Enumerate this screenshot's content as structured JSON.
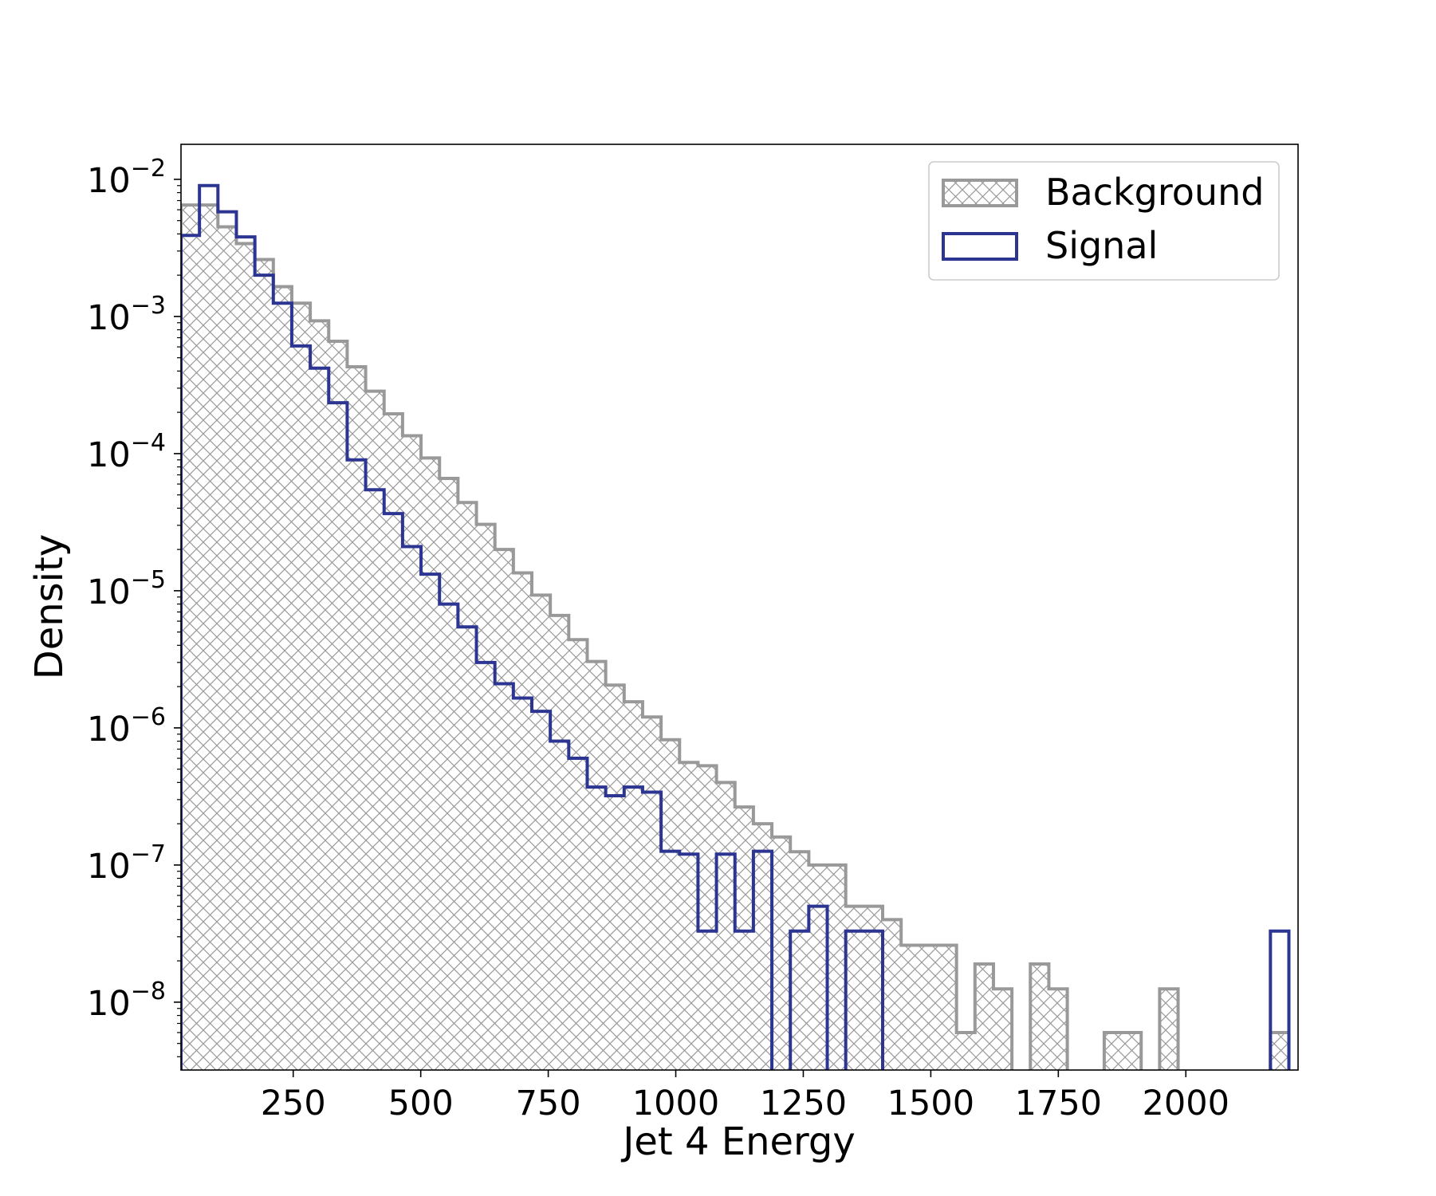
{
  "chart_data": {
    "type": "histogram",
    "xlabel": "Jet 4 Energy",
    "ylabel": "Density",
    "yscale": "log",
    "xlim": [
      30,
      2220
    ],
    "ylim": [
      3.2e-09,
      0.018
    ],
    "x_ticks": [
      250,
      500,
      750,
      1000,
      1250,
      1500,
      1750,
      2000
    ],
    "y_ticks": [
      {
        "value": 0.01,
        "base": "10",
        "exp": "−2"
      },
      {
        "value": 0.001,
        "base": "10",
        "exp": "−3"
      },
      {
        "value": 0.0001,
        "base": "10",
        "exp": "−4"
      },
      {
        "value": 1e-05,
        "base": "10",
        "exp": "−5"
      },
      {
        "value": 1e-06,
        "base": "10",
        "exp": "−6"
      },
      {
        "value": 1e-07,
        "base": "10",
        "exp": "−7"
      },
      {
        "value": 1e-08,
        "base": "10",
        "exp": "−8"
      }
    ],
    "bins": {
      "start": 30,
      "width": 36.2,
      "count": 61
    },
    "series": [
      {
        "name": "Background",
        "style": "hatched-filled",
        "color": "#999999",
        "values": [
          0.0065,
          0.0065,
          0.0045,
          0.0034,
          0.0026,
          0.00165,
          0.00125,
          0.00093,
          0.00066,
          0.00043,
          0.000285,
          0.000195,
          0.000135,
          9.3e-05,
          6.6e-05,
          4.4e-05,
          3.05e-05,
          2e-05,
          1.35e-05,
          9.3e-06,
          6.6e-06,
          4.4e-06,
          3.05e-06,
          2.05e-06,
          1.55e-06,
          1.2e-06,
          8.2e-07,
          5.6e-07,
          5.3e-07,
          4e-07,
          2.65e-07,
          2e-07,
          1.6e-07,
          1.25e-07,
          1e-07,
          1e-07,
          5e-08,
          5e-08,
          4e-08,
          2.6e-08,
          2.6e-08,
          2.6e-08,
          6e-09,
          1.9e-08,
          1.25e-08,
          0,
          1.9e-08,
          1.25e-08,
          0,
          0,
          6e-09,
          6e-09,
          0,
          1.25e-08,
          0,
          0,
          0,
          0,
          0,
          6e-09,
          0
        ]
      },
      {
        "name": "Signal",
        "style": "step",
        "color": "#2c3591",
        "values": [
          0.0039,
          0.009,
          0.0058,
          0.0038,
          0.002,
          0.00125,
          0.00061,
          0.00042,
          0.000235,
          9e-05,
          5.45e-05,
          3.65e-05,
          2.1e-05,
          1.32e-05,
          8e-06,
          5.45e-06,
          3e-06,
          2.1e-06,
          1.65e-06,
          1.32e-06,
          8e-07,
          6e-07,
          3.7e-07,
          3.2e-07,
          3.7e-07,
          3.4e-07,
          1.26e-07,
          1.2e-07,
          3.3e-08,
          1.2e-07,
          3.3e-08,
          1.26e-07,
          0,
          3.3e-08,
          5e-08,
          0,
          3.3e-08,
          3.3e-08,
          0,
          0,
          0,
          0,
          0,
          0,
          0,
          0,
          0,
          0,
          0,
          0,
          0,
          0,
          0,
          0,
          0,
          0,
          0,
          0,
          0,
          3.3e-08,
          0
        ]
      }
    ],
    "legend": {
      "position": "top-right",
      "entries": [
        "Background",
        "Signal"
      ]
    }
  }
}
